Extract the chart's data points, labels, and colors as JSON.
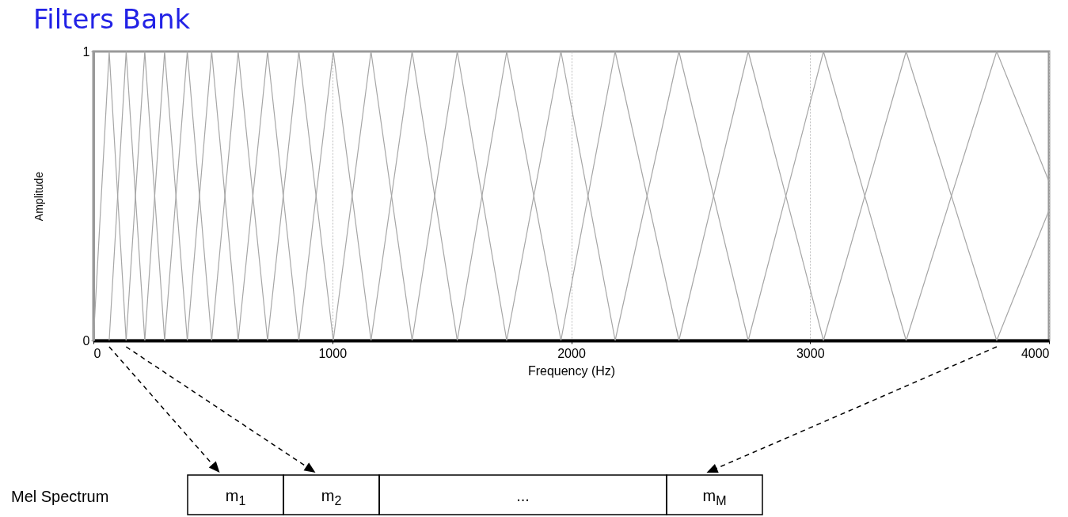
{
  "chart_data": {
    "type": "line",
    "title": "Filters Bank",
    "xlabel": "Frequency (Hz)",
    "ylabel": "Amplitude",
    "xlim": [
      0,
      4000
    ],
    "xticks": [
      0,
      1000,
      2000,
      3000,
      4000
    ],
    "ylim": [
      0,
      1
    ],
    "yticks": [
      0,
      1
    ],
    "grid": "x",
    "series": [
      {
        "color": "#a6a6a6",
        "x": [
          0,
          66,
          137
        ],
        "values": [
          0,
          1,
          0
        ]
      },
      {
        "color": "#a6a6a6",
        "x": [
          66,
          137,
          215
        ],
        "values": [
          0,
          1,
          0
        ]
      },
      {
        "color": "#a6a6a6",
        "x": [
          137,
          215,
          298
        ],
        "values": [
          0,
          1,
          0
        ]
      },
      {
        "color": "#a6a6a6",
        "x": [
          215,
          298,
          393
        ],
        "values": [
          0,
          1,
          0
        ]
      },
      {
        "color": "#a6a6a6",
        "x": [
          298,
          393,
          495
        ],
        "values": [
          0,
          1,
          0
        ]
      },
      {
        "color": "#a6a6a6",
        "x": [
          393,
          495,
          606
        ],
        "values": [
          0,
          1,
          0
        ]
      },
      {
        "color": "#a6a6a6",
        "x": [
          495,
          606,
          729
        ],
        "values": [
          0,
          1,
          0
        ]
      },
      {
        "color": "#a6a6a6",
        "x": [
          606,
          729,
          860
        ],
        "values": [
          0,
          1,
          0
        ]
      },
      {
        "color": "#a6a6a6",
        "x": [
          729,
          860,
          1004
        ],
        "values": [
          0,
          1,
          0
        ]
      },
      {
        "color": "#a6a6a6",
        "x": [
          860,
          1004,
          1162
        ],
        "values": [
          0,
          1,
          0
        ]
      },
      {
        "color": "#a6a6a6",
        "x": [
          1004,
          1162,
          1334
        ],
        "values": [
          0,
          1,
          0
        ]
      },
      {
        "color": "#a6a6a6",
        "x": [
          1162,
          1334,
          1523
        ],
        "values": [
          0,
          1,
          0
        ]
      },
      {
        "color": "#a6a6a6",
        "x": [
          1334,
          1523,
          1730
        ],
        "values": [
          0,
          1,
          0
        ]
      },
      {
        "color": "#a6a6a6",
        "x": [
          1523,
          1730,
          1957
        ],
        "values": [
          0,
          1,
          0
        ]
      },
      {
        "color": "#a6a6a6",
        "x": [
          1730,
          1957,
          2184
        ],
        "values": [
          0,
          1,
          0
        ]
      },
      {
        "color": "#a6a6a6",
        "x": [
          1957,
          2184,
          2451
        ],
        "values": [
          0,
          1,
          0
        ]
      },
      {
        "color": "#a6a6a6",
        "x": [
          2184,
          2451,
          2741
        ],
        "values": [
          0,
          1,
          0
        ]
      },
      {
        "color": "#a6a6a6",
        "x": [
          2451,
          2741,
          3056
        ],
        "values": [
          0,
          1,
          0
        ]
      },
      {
        "color": "#a6a6a6",
        "x": [
          2741,
          3056,
          3402
        ],
        "values": [
          0,
          1,
          0
        ]
      },
      {
        "color": "#a6a6a6",
        "x": [
          3056,
          3402,
          3781
        ],
        "values": [
          0,
          1,
          0
        ]
      },
      {
        "color": "#a6a6a6",
        "x": [
          3402,
          3781,
          4000
        ],
        "values": [
          0,
          1,
          0.55
        ]
      },
      {
        "color": "#a6a6a6",
        "x": [
          3781,
          4000
        ],
        "values": [
          0,
          0.45
        ]
      }
    ],
    "annotations": [
      "Mel Spectrum",
      "m$_{1}$",
      "m$_{2}$",
      "...",
      "m$_{M}$"
    ]
  }
}
